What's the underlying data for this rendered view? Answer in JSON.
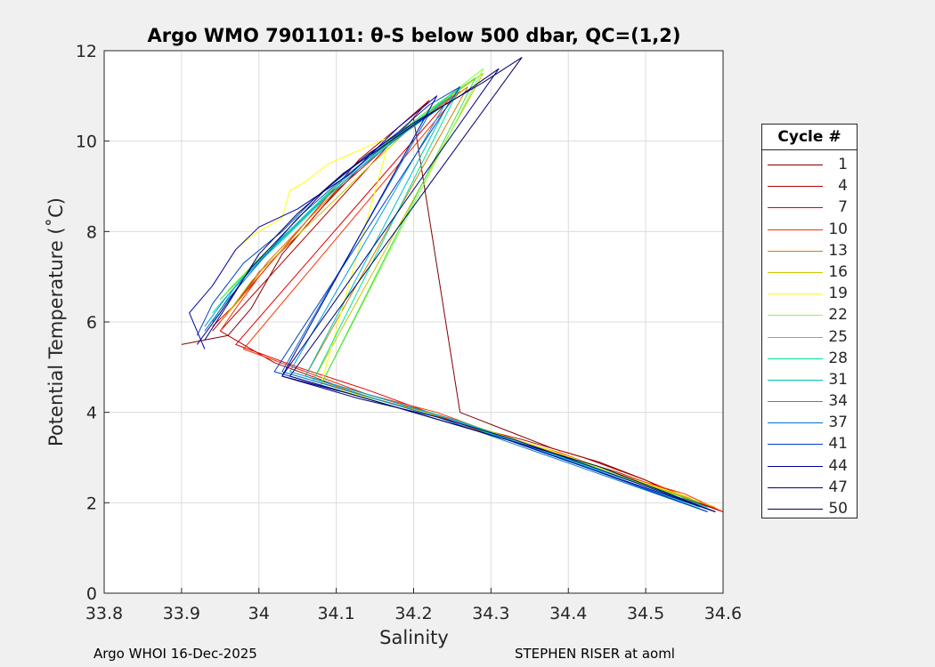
{
  "chart_data": {
    "type": "line",
    "title": "Argo WMO 7901101: θ-S below 500 dbar,  QC=(1,2)",
    "xlabel": "Salinity",
    "ylabel": "Potential Temperature (˚C)",
    "xlim": [
      33.8,
      34.6
    ],
    "ylim": [
      0,
      12
    ],
    "xticks": [
      "33.8",
      "33.9",
      "34",
      "34.1",
      "34.2",
      "34.3",
      "34.4",
      "34.5",
      "34.6"
    ],
    "yticks": [
      "0",
      "2",
      "4",
      "6",
      "8",
      "10",
      "12"
    ],
    "grid": true,
    "legend": {
      "title": "Cycle #",
      "position": "right"
    },
    "series": [
      {
        "name": "1",
        "color": "#800000",
        "x": [
          33.9,
          33.93,
          33.96,
          33.99,
          34.03,
          34.08,
          34.13,
          34.17,
          34.2,
          34.26,
          34.32,
          34.38,
          34.44,
          34.5,
          34.55,
          34.6
        ],
        "y": [
          5.5,
          5.6,
          5.7,
          6.3,
          7.5,
          8.5,
          9.4,
          10.0,
          10.5,
          4.0,
          3.6,
          3.2,
          2.9,
          2.5,
          2.1,
          1.8
        ]
      },
      {
        "name": "4",
        "color": "#b00000",
        "x": [
          33.94,
          33.96,
          33.99,
          34.03,
          34.08,
          34.13,
          34.18,
          34.22,
          33.95,
          34.02,
          34.1,
          34.18,
          34.27,
          34.34,
          34.42,
          34.5,
          34.57,
          34.6
        ],
        "y": [
          5.8,
          6.2,
          6.8,
          7.6,
          8.6,
          9.6,
          10.3,
          10.9,
          5.8,
          5.1,
          4.6,
          4.2,
          3.7,
          3.4,
          3.0,
          2.5,
          2.0,
          1.8
        ]
      },
      {
        "name": "7",
        "color": "#e00000",
        "x": [
          33.94,
          33.97,
          34.0,
          34.05,
          34.1,
          34.16,
          34.21,
          34.25,
          33.97,
          34.05,
          34.14,
          34.22,
          34.3,
          34.38,
          34.46,
          34.54,
          34.6
        ],
        "y": [
          5.9,
          6.4,
          7.1,
          7.9,
          8.9,
          9.8,
          10.5,
          11.0,
          5.5,
          5.0,
          4.5,
          4.0,
          3.5,
          3.1,
          2.7,
          2.2,
          1.8
        ]
      },
      {
        "name": "10",
        "color": "#ff3000",
        "x": [
          33.95,
          33.97,
          34.0,
          34.04,
          34.09,
          34.15,
          34.2,
          34.26,
          33.98,
          34.06,
          34.14,
          34.23,
          34.31,
          34.39,
          34.47,
          34.55,
          34.6
        ],
        "y": [
          5.8,
          6.3,
          7.0,
          7.8,
          8.8,
          9.7,
          10.4,
          11.1,
          5.4,
          4.9,
          4.4,
          4.0,
          3.5,
          3.1,
          2.6,
          2.2,
          1.8
        ]
      },
      {
        "name": "13",
        "color": "#d08000",
        "x": [
          33.95,
          33.98,
          34.01,
          34.06,
          34.11,
          34.17,
          34.22,
          34.27,
          34.06,
          34.15,
          34.24,
          34.33,
          34.42,
          34.5,
          34.59
        ],
        "y": [
          6.0,
          6.6,
          7.3,
          8.2,
          9.1,
          10.0,
          10.6,
          11.2,
          4.8,
          4.3,
          3.9,
          3.4,
          2.9,
          2.4,
          1.9
        ]
      },
      {
        "name": "16",
        "color": "#c8c800",
        "x": [
          33.96,
          33.99,
          34.03,
          34.08,
          34.14,
          34.19,
          34.24,
          34.29,
          34.07,
          34.17,
          34.26,
          34.35,
          34.44,
          34.52,
          34.59
        ],
        "y": [
          6.2,
          6.9,
          7.6,
          8.4,
          9.4,
          10.2,
          10.9,
          11.5,
          4.7,
          4.2,
          3.8,
          3.3,
          2.8,
          2.3,
          1.9
        ]
      },
      {
        "name": "19",
        "color": "#ffff00",
        "x": [
          33.97,
          33.99,
          34.03,
          34.04,
          34.06,
          34.09,
          34.13,
          34.17,
          34.08,
          34.17,
          34.27,
          34.37,
          34.47,
          34.56
        ],
        "y": [
          7.6,
          7.9,
          8.3,
          8.9,
          9.1,
          9.5,
          9.8,
          10.1,
          4.6,
          4.2,
          3.7,
          3.2,
          2.6,
          2.1
        ]
      },
      {
        "name": "22",
        "color": "#80ff40",
        "x": [
          33.96,
          34.0,
          34.05,
          34.11,
          34.17,
          34.23,
          34.29,
          34.08,
          34.18,
          34.28,
          34.38,
          34.47,
          34.56
        ],
        "y": [
          6.7,
          7.4,
          8.2,
          9.2,
          10.0,
          10.8,
          11.6,
          4.6,
          4.1,
          3.6,
          3.1,
          2.6,
          2.0
        ]
      },
      {
        "name": "25",
        "color": "#40e040",
        "x": [
          33.95,
          33.99,
          34.04,
          34.1,
          34.16,
          34.22,
          34.28,
          34.08,
          34.18,
          34.28,
          34.38,
          34.48,
          34.57
        ],
        "y": [
          6.5,
          7.2,
          8.0,
          9.0,
          9.9,
          10.7,
          11.4,
          4.6,
          4.1,
          3.6,
          3.1,
          2.5,
          2.0
        ]
      },
      {
        "name": "28",
        "color": "#00e0a0",
        "x": [
          33.94,
          33.98,
          34.03,
          34.09,
          34.15,
          34.21,
          34.26,
          34.07,
          34.17,
          34.27,
          34.37,
          34.47,
          34.57
        ],
        "y": [
          6.2,
          7.0,
          7.8,
          8.8,
          9.7,
          10.5,
          11.2,
          4.7,
          4.2,
          3.7,
          3.1,
          2.5,
          1.9
        ]
      },
      {
        "name": "31",
        "color": "#00c0c0",
        "x": [
          33.94,
          33.97,
          34.02,
          34.08,
          34.14,
          34.2,
          34.25,
          34.06,
          34.16,
          34.26,
          34.36,
          34.46,
          34.58
        ],
        "y": [
          6.0,
          6.8,
          7.7,
          8.7,
          9.6,
          10.4,
          11.0,
          4.8,
          4.3,
          3.8,
          3.2,
          2.6,
          1.9
        ]
      },
      {
        "name": "34",
        "color": "#00a0e0",
        "x": [
          33.93,
          33.96,
          34.01,
          34.07,
          34.13,
          34.19,
          34.24,
          34.04,
          34.14,
          34.24,
          34.34,
          34.44,
          34.58
        ],
        "y": [
          5.9,
          6.6,
          7.5,
          8.5,
          9.4,
          10.2,
          10.8,
          4.9,
          4.4,
          3.9,
          3.3,
          2.7,
          1.8
        ]
      },
      {
        "name": "37",
        "color": "#0070d0",
        "x": [
          33.93,
          33.96,
          34.0,
          34.05,
          34.11,
          34.17,
          34.22,
          34.03,
          34.13,
          34.23,
          34.33,
          34.43,
          34.58
        ],
        "y": [
          5.8,
          6.5,
          7.3,
          8.3,
          9.2,
          10.0,
          10.6,
          4.9,
          4.4,
          3.9,
          3.3,
          2.7,
          1.8
        ]
      },
      {
        "name": "41",
        "color": "#0040c0",
        "x": [
          33.92,
          33.94,
          33.98,
          34.03,
          34.07,
          34.12,
          34.18,
          34.22,
          34.26,
          34.02,
          34.12,
          34.22,
          34.32,
          34.42,
          34.58
        ],
        "y": [
          5.7,
          6.4,
          7.3,
          8.0,
          8.7,
          9.4,
          10.2,
          10.8,
          11.2,
          4.9,
          4.4,
          3.9,
          3.4,
          2.8,
          1.8
        ]
      },
      {
        "name": "44",
        "color": "#0000a0",
        "x": [
          33.93,
          33.91,
          33.94,
          33.97,
          34.0,
          34.05,
          34.12,
          34.18,
          34.23,
          34.03,
          34.12,
          34.22,
          34.32,
          34.42,
          34.59
        ],
        "y": [
          5.4,
          6.2,
          6.8,
          7.6,
          8.1,
          8.5,
          9.3,
          10.3,
          11.0,
          4.8,
          4.4,
          3.9,
          3.4,
          2.8,
          1.8
        ]
      },
      {
        "name": "47",
        "color": "#000080",
        "x": [
          33.92,
          33.95,
          33.99,
          34.04,
          34.09,
          34.14,
          34.2,
          34.26,
          34.31,
          34.03,
          34.13,
          34.23,
          34.33,
          34.43,
          34.59
        ],
        "y": [
          5.5,
          6.2,
          7.2,
          8.1,
          9.0,
          9.7,
          10.4,
          11.0,
          11.6,
          4.8,
          4.3,
          3.9,
          3.4,
          2.8,
          1.8
        ]
      },
      {
        "name": "50",
        "color": "#000066",
        "x": [
          33.93,
          33.96,
          34.0,
          34.05,
          34.11,
          34.17,
          34.23,
          34.29,
          34.34,
          34.04,
          34.14,
          34.24,
          34.34,
          34.44,
          34.59
        ],
        "y": [
          5.6,
          6.4,
          7.5,
          8.4,
          9.3,
          10.0,
          10.7,
          11.3,
          11.85,
          4.8,
          4.3,
          3.8,
          3.3,
          2.8,
          1.8
        ]
      }
    ]
  },
  "footer": {
    "left": "Argo WHOI 16-Dec-2025",
    "right": "STEPHEN RISER at aoml"
  }
}
